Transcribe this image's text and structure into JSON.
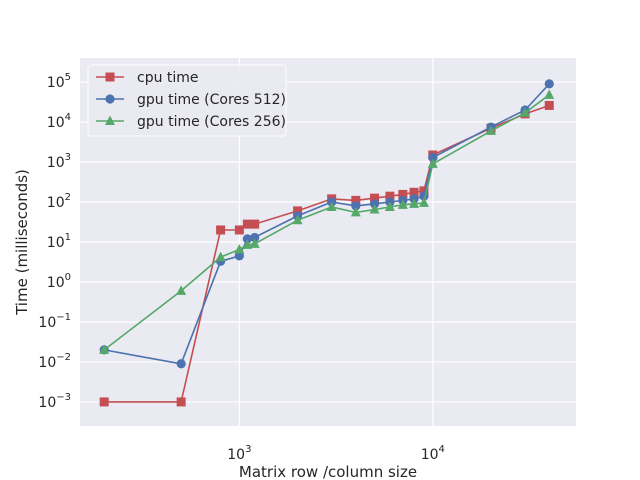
{
  "chart_data": {
    "type": "line",
    "title": "",
    "xlabel": "Matrix row /column size",
    "ylabel": "Time (milliseconds)",
    "xscale": "log",
    "yscale": "log",
    "xlim": [
      150,
      55000
    ],
    "ylim": [
      0.00025,
      400000
    ],
    "grid": true,
    "legend_position": "upper-left",
    "x_ticks": [
      {
        "value": 1000,
        "base": "10",
        "exp": "3"
      },
      {
        "value": 10000,
        "base": "10",
        "exp": "4"
      }
    ],
    "y_ticks": [
      {
        "value": 0.001,
        "base": "10",
        "exp": "−3"
      },
      {
        "value": 0.01,
        "base": "10",
        "exp": "−2"
      },
      {
        "value": 0.1,
        "base": "10",
        "exp": "−1"
      },
      {
        "value": 1,
        "base": "10",
        "exp": "0"
      },
      {
        "value": 10,
        "base": "10",
        "exp": "1"
      },
      {
        "value": 100,
        "base": "10",
        "exp": "2"
      },
      {
        "value": 1000,
        "base": "10",
        "exp": "3"
      },
      {
        "value": 10000,
        "base": "10",
        "exp": "4"
      },
      {
        "value": 100000,
        "base": "10",
        "exp": "5"
      }
    ],
    "series": [
      {
        "name": "cpu time",
        "color": "#c44e52",
        "marker": "square",
        "x": [
          200,
          500,
          800,
          1000,
          1100,
          1200,
          2000,
          3000,
          4000,
          5000,
          6000,
          7000,
          8000,
          9000,
          10000,
          20000,
          30000,
          40000
        ],
        "y": [
          0.001,
          0.001,
          20,
          20,
          28,
          28,
          60,
          120,
          110,
          125,
          140,
          155,
          175,
          190,
          1500,
          7000,
          16000,
          26000
        ]
      },
      {
        "name": "gpu time (Cores 512)",
        "color": "#4c72b0",
        "marker": "circle",
        "x": [
          200,
          500,
          800,
          1000,
          1100,
          1200,
          2000,
          3000,
          4000,
          5000,
          6000,
          7000,
          8000,
          9000,
          10000,
          20000,
          30000,
          40000
        ],
        "y": [
          0.02,
          0.009,
          3.3,
          4.5,
          12,
          13,
          45,
          100,
          80,
          90,
          100,
          110,
          120,
          140,
          1300,
          7500,
          20000,
          90000
        ]
      },
      {
        "name": "gpu time (Cores 256)",
        "color": "#55a868",
        "marker": "triangle",
        "x": [
          200,
          500,
          800,
          1000,
          1100,
          1200,
          2000,
          3000,
          4000,
          5000,
          6000,
          7000,
          8000,
          9000,
          10000,
          20000,
          30000,
          40000
        ],
        "y": [
          0.02,
          0.6,
          4.2,
          6.5,
          8.5,
          9,
          35,
          75,
          55,
          65,
          75,
          85,
          90,
          95,
          900,
          6000,
          17000,
          48000
        ]
      }
    ]
  }
}
